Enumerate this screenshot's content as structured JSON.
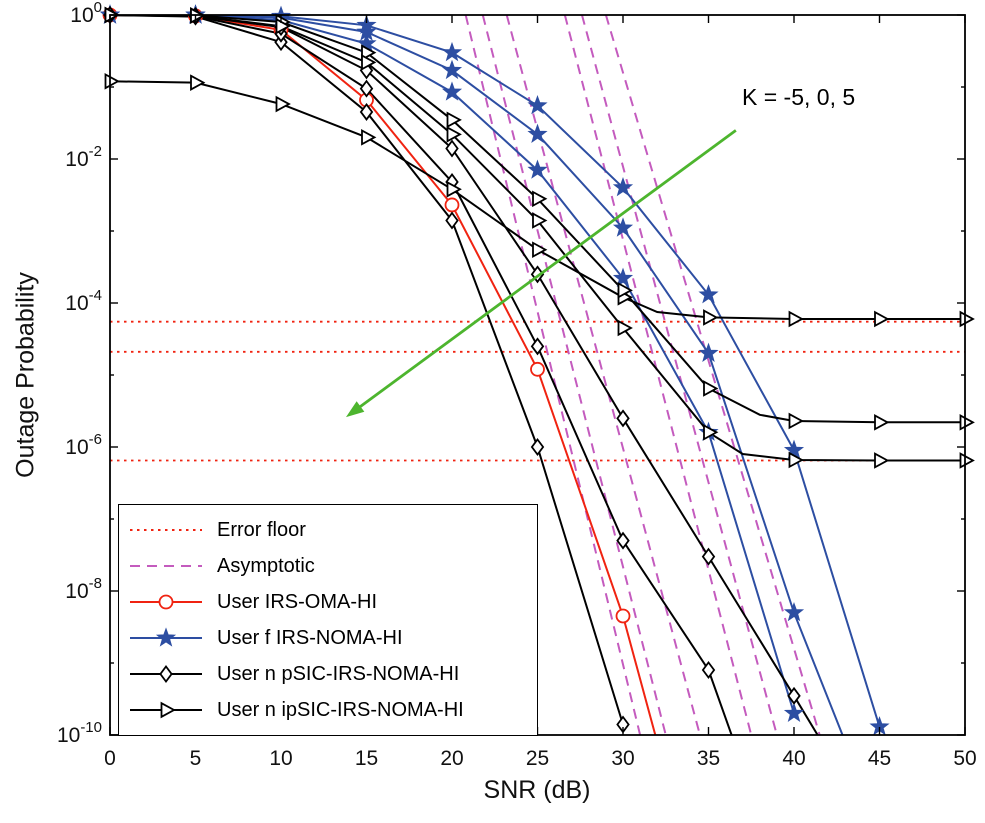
{
  "legend": {
    "items": [
      {
        "label": "Error floor",
        "color": "#f02311",
        "style": "dotted",
        "marker": "none"
      },
      {
        "label": "Asymptotic",
        "color": "#c45bbe",
        "style": "dashed",
        "marker": "none"
      },
      {
        "label": "User IRS-OMA-HI",
        "color": "#f02311",
        "style": "solid",
        "marker": "circle"
      },
      {
        "label": "User f IRS-NOMA-HI",
        "color": "#2d4ea2",
        "style": "solid",
        "marker": "star"
      },
      {
        "label": "User n pSIC-IRS-NOMA-HI",
        "color": "#000000",
        "style": "solid",
        "marker": "diamond"
      },
      {
        "label": "User n ipSIC-IRS-NOMA-HI",
        "color": "#000000",
        "style": "solid",
        "marker": "triangle-right"
      }
    ]
  },
  "chart_data": {
    "type": "line",
    "title": "",
    "xlabel": "SNR (dB)",
    "ylabel": "Outage Probability",
    "xlim": [
      0,
      50
    ],
    "x_ticks": [
      0,
      5,
      10,
      15,
      20,
      25,
      30,
      35,
      40,
      45,
      50
    ],
    "y_scale": "log",
    "ylim": [
      1e-10,
      1
    ],
    "y_tick_exponents": [
      0,
      -2,
      -4,
      -6,
      -8,
      -10
    ],
    "legend_position": "lower-left",
    "grid": false,
    "annotation": {
      "text": "K = -5, 0, 5",
      "color": "#4db52e",
      "arrow_from": {
        "x": 36.6,
        "y": 0.025
      },
      "arrow_to": {
        "x": 13.8,
        "y": 2.6e-06
      }
    },
    "error_floor_lines": {
      "color": "#f02311",
      "style": "dotted",
      "y_values": [
        5.5e-05,
        2.1e-05,
        6.5e-07
      ]
    },
    "asymptotic_lines": {
      "color": "#c45bbe",
      "style": "dashed",
      "y_span": [
        1,
        1e-10
      ],
      "x_pairs": [
        [
          20.8,
          31.0
        ],
        [
          21.8,
          32.5
        ],
        [
          23.2,
          34.5
        ],
        [
          26.6,
          37.5
        ],
        [
          27.6,
          39.0
        ],
        [
          29.0,
          41.5
        ]
      ]
    },
    "series": [
      {
        "name": "User IRS-OMA-HI",
        "color": "#f02311",
        "marker": "circle",
        "x": [
          0,
          5,
          10,
          15,
          20,
          25,
          30,
          32
        ],
        "y": [
          1,
          0.97,
          0.62,
          0.066,
          0.0023,
          1.2e-05,
          4.5e-09,
          8e-11
        ]
      },
      {
        "name": "User f IRS-NOMA-HI (K=5)",
        "color": "#2d4ea2",
        "marker": "star",
        "x": [
          0,
          5,
          10,
          15,
          20,
          25,
          30,
          35,
          40
        ],
        "y": [
          1,
          1,
          0.85,
          0.4,
          0.085,
          0.007,
          0.00022,
          1.6e-06,
          2e-10
        ]
      },
      {
        "name": "User f IRS-NOMA-HI (K=0)",
        "color": "#2d4ea2",
        "marker": "star",
        "x": [
          0,
          5,
          10,
          15,
          20,
          25,
          30,
          35,
          40,
          43
        ],
        "y": [
          1,
          1,
          0.92,
          0.58,
          0.17,
          0.022,
          0.0011,
          2e-05,
          5e-09,
          8e-11
        ]
      },
      {
        "name": "User f IRS-NOMA-HI (K=-5)",
        "color": "#2d4ea2",
        "marker": "star",
        "x": [
          0,
          5,
          10,
          15,
          20,
          25,
          30,
          35,
          40,
          45
        ],
        "y": [
          1,
          1,
          0.96,
          0.72,
          0.3,
          0.055,
          0.004,
          0.00013,
          9e-07,
          1.3e-10
        ]
      },
      {
        "name": "User n pSIC-IRS-NOMA-HI (K=5)",
        "color": "#000000",
        "marker": "diamond",
        "x": [
          0,
          5,
          10,
          15,
          20,
          25,
          30
        ],
        "y": [
          1,
          0.95,
          0.42,
          0.045,
          0.0014,
          1e-06,
          1.4e-10
        ]
      },
      {
        "name": "User n pSIC-IRS-NOMA-HI (K=0)",
        "color": "#000000",
        "marker": "diamond",
        "x": [
          0,
          5,
          10,
          15,
          20,
          25,
          30,
          35,
          36.5
        ],
        "y": [
          1,
          0.96,
          0.55,
          0.095,
          0.0048,
          2.5e-05,
          5e-08,
          8e-10,
          8e-11
        ]
      },
      {
        "name": "User n pSIC-IRS-NOMA-HI (K=-5)",
        "color": "#000000",
        "marker": "diamond",
        "x": [
          0,
          5,
          10,
          15,
          20,
          25,
          30,
          35,
          40,
          41.5
        ],
        "y": [
          1,
          0.97,
          0.68,
          0.17,
          0.014,
          0.00025,
          2.5e-06,
          3e-08,
          3.5e-10,
          9e-11
        ]
      },
      {
        "name": "User n ipSIC-IRS-NOMA-HI (K=-5)",
        "color": "#000000",
        "marker": "triangle-right",
        "x": [
          0,
          5,
          10,
          15,
          20,
          25,
          30,
          32,
          35,
          40,
          45,
          50
        ],
        "y": [
          0.12,
          0.115,
          0.058,
          0.02,
          0.0038,
          0.00055,
          0.00012,
          7.5e-05,
          6.3e-05,
          6e-05,
          6e-05,
          6e-05
        ]
      },
      {
        "name": "User n ipSIC-IRS-NOMA-HI (K=0)",
        "color": "#000000",
        "marker": "triangle-right",
        "x": [
          0,
          5,
          10,
          15,
          20,
          25,
          30,
          35,
          38,
          40,
          45,
          50
        ],
        "y": [
          1,
          0.99,
          0.8,
          0.3,
          0.035,
          0.0028,
          0.00015,
          6.5e-06,
          2.8e-06,
          2.3e-06,
          2.2e-06,
          2.2e-06
        ]
      },
      {
        "name": "User n ipSIC-IRS-NOMA-HI (K=5)",
        "color": "#000000",
        "marker": "triangle-right",
        "x": [
          0,
          5,
          10,
          15,
          20,
          25,
          30,
          35,
          37,
          40,
          45,
          50
        ],
        "y": [
          1,
          0.98,
          0.7,
          0.22,
          0.022,
          0.0014,
          4.5e-05,
          1.6e-06,
          8e-07,
          6.6e-07,
          6.5e-07,
          6.5e-07
        ]
      }
    ]
  }
}
